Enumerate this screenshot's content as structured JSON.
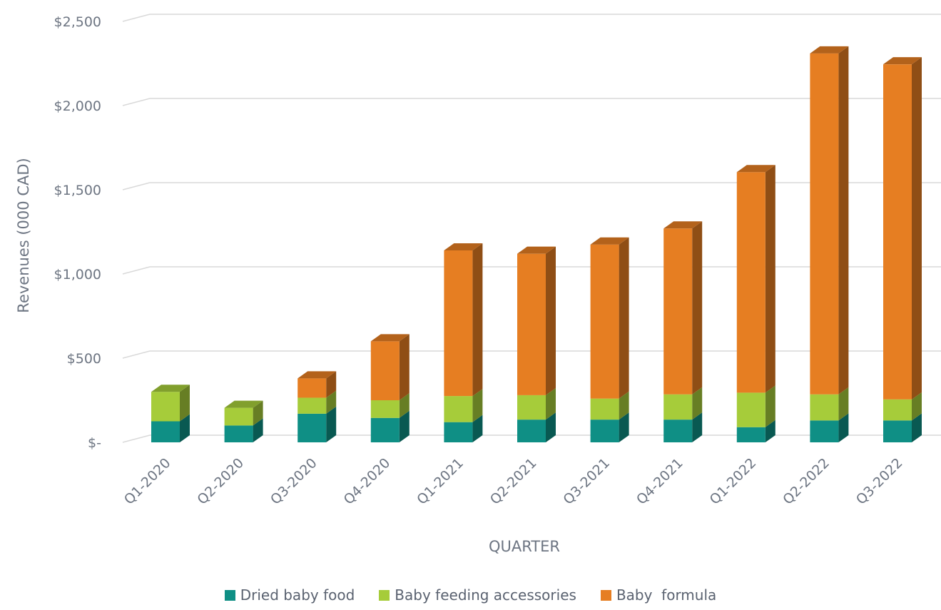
{
  "chart_data": {
    "type": "bar",
    "stacked": true,
    "categories": [
      "Q1-2020",
      "Q2-2020",
      "Q3-2020",
      "Q4-2020",
      "Q1-2021",
      "Q2-2021",
      "Q3-2021",
      "Q4-2021",
      "Q1-2022",
      "Q2-2022",
      "Q3-2022"
    ],
    "series": [
      {
        "name": "Dried baby food",
        "color": "#0f8f85",
        "values": [
          125,
          100,
          170,
          145,
          120,
          135,
          135,
          135,
          90,
          130,
          130
        ]
      },
      {
        "name": "Baby feeding accessories",
        "color": "#a6cc3a",
        "values": [
          175,
          105,
          95,
          105,
          155,
          145,
          125,
          150,
          205,
          155,
          125
        ]
      },
      {
        "name": "Baby  formula",
        "color": "#e67e22",
        "values": [
          0,
          0,
          115,
          350,
          865,
          840,
          915,
          985,
          1310,
          2025,
          1990
        ]
      }
    ],
    "xlabel": "QUARTER",
    "ylabel": "Revenues (000 CAD)",
    "ylim": [
      0,
      2500
    ],
    "yticks": [
      0,
      500,
      1000,
      1500,
      2000,
      2500
    ],
    "ytick_labels": [
      "$-",
      "$500",
      "$1,000",
      "$1,500",
      "$2,000",
      "$2,500"
    ],
    "grid": true,
    "legend_position": "bottom",
    "style": "3d-column"
  }
}
